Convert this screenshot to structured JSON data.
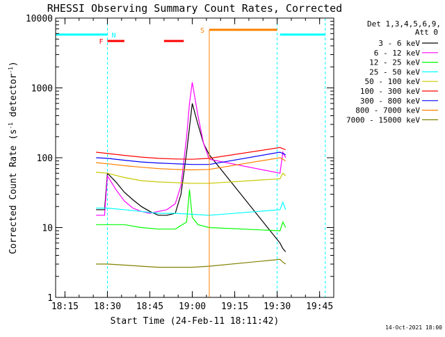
{
  "title": "RHESSI Observing Summary Count Rates, Corrected",
  "footer_date": "14-Oct-2021 18:00",
  "colors": {
    "n": "#00ffff",
    "f": "#ff0000",
    "s": "#ff8000",
    "boundary": "#00ffff"
  },
  "chart_data": {
    "type": "line",
    "title": "RHESSI Observing Summary Count Rates, Corrected",
    "xlabel": "Start Time (24-Feb-11 18:11:42)",
    "ylabel_main": "Corrected Count Rate (s",
    "ylabel_sup": "-1",
    "ylabel_mid": " detector",
    "ylabel_sup2": "-1",
    "ylabel_end": ")",
    "xlim": [
      "18:11:42",
      "19:50:00"
    ],
    "ylim": [
      1,
      10000
    ],
    "yscale": "log",
    "x_ticks": [
      "18:15",
      "18:30",
      "18:45",
      "19:00",
      "19:15",
      "19:30",
      "19:45"
    ],
    "y_ticks": [
      "1",
      "10",
      "100",
      "1000",
      "10000"
    ],
    "legend_header": [
      "Det 1,3,4,5,6,9,",
      "Att 0"
    ],
    "legend_position": "right",
    "grid": false,
    "series": [
      {
        "name": "3 - 6 keV",
        "color": "#000000",
        "x": [
          "18:26",
          "18:29",
          "18:30",
          "18:33",
          "18:36",
          "18:39",
          "18:42",
          "18:45",
          "18:48",
          "18:51",
          "18:54",
          "18:56",
          "18:58",
          "19:00",
          "19:02",
          "19:04",
          "19:06",
          "19:31",
          "19:32",
          "19:33"
        ],
        "y": [
          18,
          18,
          60,
          45,
          32,
          25,
          20,
          17,
          15,
          15,
          16,
          30,
          120,
          600,
          300,
          160,
          110,
          6,
          5,
          4.5
        ]
      },
      {
        "name": "6 - 12 keV",
        "color": "#ff00ff",
        "x": [
          "18:26",
          "18:29",
          "18:30",
          "18:33",
          "18:36",
          "18:39",
          "18:42",
          "18:45",
          "18:48",
          "18:51",
          "18:54",
          "18:56",
          "18:58",
          "18:59",
          "19:00",
          "19:02",
          "19:04",
          "19:06",
          "19:31",
          "19:32",
          "19:33"
        ],
        "y": [
          15,
          15,
          55,
          35,
          24,
          19,
          17,
          16,
          17,
          18,
          22,
          40,
          200,
          600,
          1200,
          400,
          160,
          95,
          60,
          120,
          100
        ]
      },
      {
        "name": "12 - 25 keV",
        "color": "#00ff00",
        "x": [
          "18:26",
          "18:29",
          "18:30",
          "18:36",
          "18:42",
          "18:48",
          "18:54",
          "18:58",
          "18:59",
          "19:00",
          "19:02",
          "19:06",
          "19:31",
          "19:32",
          "19:33"
        ],
        "y": [
          11,
          11,
          11,
          11,
          10,
          9.5,
          9.5,
          12,
          35,
          14,
          11,
          10,
          9,
          12,
          10
        ]
      },
      {
        "name": "25 - 50 keV",
        "color": "#00ffff",
        "x": [
          "18:26",
          "18:30",
          "18:36",
          "18:42",
          "18:48",
          "18:54",
          "19:00",
          "19:06",
          "19:31",
          "19:32",
          "19:33"
        ],
        "y": [
          19,
          19,
          18,
          17,
          16,
          16,
          15.5,
          15,
          18,
          23,
          18
        ]
      },
      {
        "name": "50 - 100 keV",
        "color": "#c8c800",
        "x": [
          "18:26",
          "18:30",
          "18:36",
          "18:42",
          "18:48",
          "18:54",
          "19:00",
          "19:06",
          "19:31",
          "19:32",
          "19:33"
        ],
        "y": [
          62,
          60,
          52,
          47,
          45,
          44,
          43,
          43,
          50,
          60,
          55
        ]
      },
      {
        "name": "100 - 300 keV",
        "color": "#ff0000",
        "x": [
          "18:26",
          "18:30",
          "18:36",
          "18:42",
          "18:48",
          "18:54",
          "19:00",
          "19:06",
          "19:31",
          "19:32",
          "19:33"
        ],
        "y": [
          120,
          115,
          108,
          102,
          98,
          96,
          95,
          98,
          140,
          135,
          130
        ]
      },
      {
        "name": "300 - 800 keV",
        "color": "#0000ff",
        "x": [
          "18:26",
          "18:30",
          "18:36",
          "18:42",
          "18:48",
          "18:54",
          "19:00",
          "19:06",
          "19:31",
          "19:32",
          "19:33"
        ],
        "y": [
          100,
          98,
          92,
          87,
          84,
          82,
          80,
          80,
          120,
          115,
          110
        ]
      },
      {
        "name": "800 - 7000 keV",
        "color": "#ff8000",
        "x": [
          "18:26",
          "18:30",
          "18:36",
          "18:42",
          "18:48",
          "18:54",
          "19:00",
          "19:06",
          "19:31",
          "19:32",
          "19:33"
        ],
        "y": [
          85,
          82,
          77,
          73,
          70,
          68,
          67,
          68,
          100,
          95,
          90
        ]
      },
      {
        "name": "7000 - 15000 keV",
        "color": "#808000",
        "x": [
          "18:26",
          "18:30",
          "18:36",
          "18:42",
          "18:48",
          "18:54",
          "19:00",
          "19:06",
          "19:31",
          "19:32",
          "19:33"
        ],
        "y": [
          3,
          3,
          2.9,
          2.8,
          2.7,
          2.7,
          2.7,
          2.8,
          3.5,
          3.2,
          3
        ]
      }
    ],
    "flags": {
      "n_label": "N",
      "f_label": "F",
      "s_label": "S",
      "night_segments": [
        [
          "18:11:42",
          "18:30"
        ],
        [
          "19:31",
          "19:47"
        ]
      ],
      "night_level": 5800,
      "flare_segments": [
        [
          "18:30",
          "18:36"
        ],
        [
          "18:50",
          "18:57"
        ]
      ],
      "flare_level": 4700,
      "saa_segments": [
        [
          "19:06",
          "19:30"
        ]
      ],
      "saa_level": 6800,
      "boundary_times": [
        "18:30",
        "19:30",
        "19:47"
      ]
    }
  }
}
